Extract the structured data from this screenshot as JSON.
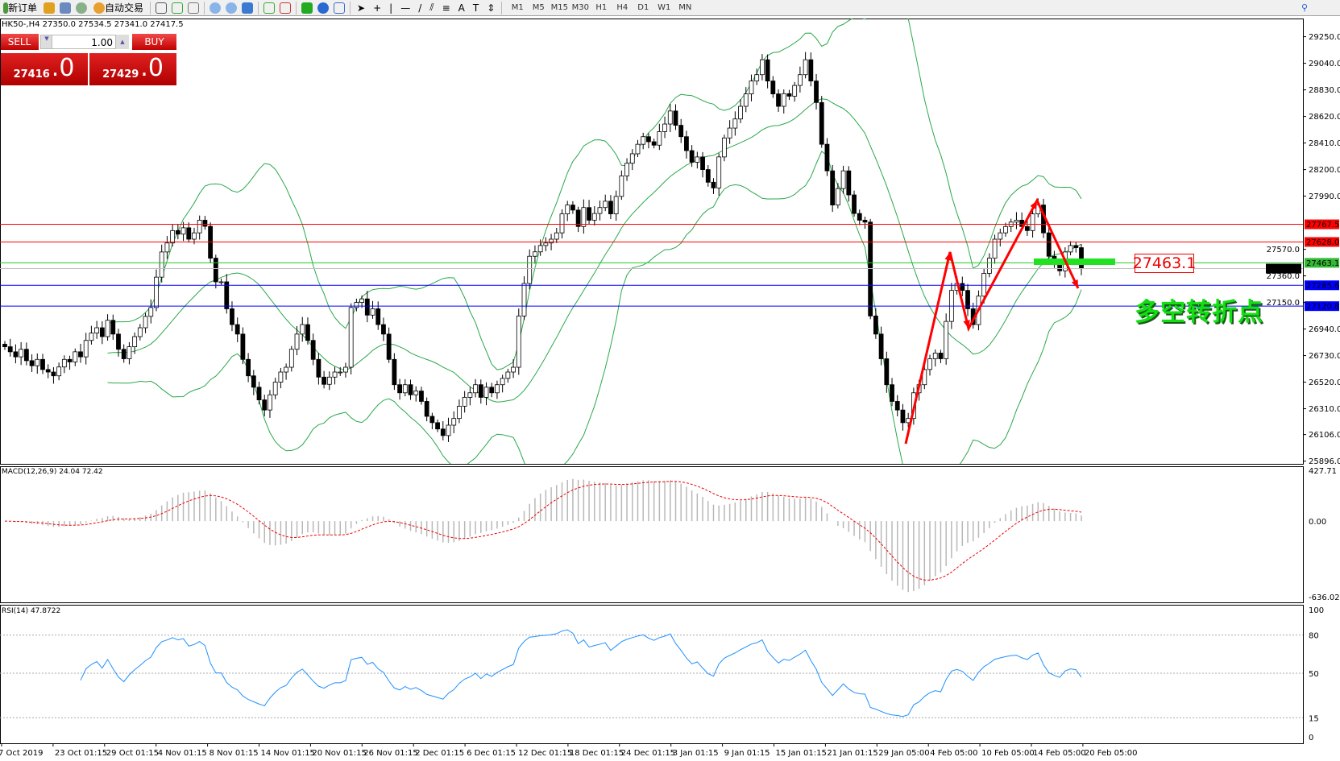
{
  "toolbar": {
    "new_order": "新订单",
    "auto_trading": "自动交易",
    "timeframes": [
      "M1",
      "M5",
      "M15",
      "M30",
      "H1",
      "H4",
      "D1",
      "W1",
      "MN"
    ]
  },
  "chart": {
    "title": "HK50-,H4  27350.0 27534.5 27341.0 27417.5"
  },
  "trade": {
    "sell_label": "SELL",
    "buy_label": "BUY",
    "lot": "1.00",
    "sell_price": "27416",
    "sell_frac": ".0",
    "buy_price": "27429",
    "buy_frac": ".0"
  },
  "annotation": {
    "price_box": "27463.1",
    "text": "多空转折点",
    "arrow_color": "#ff0000",
    "marker_color": "#22e022"
  },
  "chart_data": [
    {
      "type": "candlestick",
      "symbol": "HK50-",
      "timeframe": "H4",
      "ylim": [
        25896,
        29460
      ],
      "y_ticks": [
        "29250.0",
        "29040.0",
        "28830.0",
        "28620.0",
        "28410.0",
        "28200.0",
        "27990.0",
        "27570.0",
        "27360.0",
        "27150.0",
        "26940.0",
        "26730.0",
        "26520.0",
        "26310.0",
        "26106.0",
        "25896.0"
      ],
      "x_ticks": [
        "7 Oct 2019",
        "23 Oct 01:15",
        "29 Oct 01:15",
        "4 Nov 01:15",
        "8 Nov 01:15",
        "14 Nov 01:15",
        "20 Nov 01:15",
        "26 Nov 01:15",
        "2 Dec 01:15",
        "6 Dec 01:15",
        "12 Dec 01:15",
        "18 Dec 01:15",
        "24 Dec 01:15",
        "3 Jan 01:15",
        "9 Jan 01:15",
        "15 Jan 01:15",
        "21 Jan 01:15",
        "29 Jan 05:00",
        "4 Feb 05:00",
        "10 Feb 05:00",
        "14 Feb 05:00",
        "20 Feb 05:00"
      ],
      "closes": [
        26800,
        26760,
        26720,
        26780,
        26690,
        26650,
        26700,
        26620,
        26600,
        26570,
        26640,
        26700,
        26680,
        26760,
        26720,
        26850,
        26908,
        26950,
        26880,
        27009,
        26900,
        26780,
        26705,
        26800,
        26880,
        26950,
        27040,
        27110,
        27350,
        27549,
        27620,
        27718,
        27690,
        27740,
        27650,
        27700,
        27800,
        27752,
        27500,
        27313,
        27313,
        27100,
        26975,
        26900,
        26700,
        26570,
        26480,
        26380,
        26300,
        26420,
        26520,
        26600,
        26638,
        26780,
        26900,
        26975,
        26850,
        26700,
        26560,
        26503,
        26560,
        26600,
        26600,
        26638,
        27110,
        27150,
        27178,
        27050,
        27100,
        26975,
        26900,
        26700,
        26500,
        26436,
        26500,
        26420,
        26450,
        26368,
        26250,
        26200,
        26150,
        26098,
        26180,
        26233,
        26330,
        26400,
        26436,
        26500,
        26400,
        26480,
        26436,
        26500,
        26550,
        26600,
        26638,
        27043,
        27300,
        27515,
        27550,
        27600,
        27620,
        27650,
        27700,
        27850,
        27920,
        27880,
        27750,
        27900,
        27800,
        27853,
        27900,
        27950,
        27850,
        27988,
        28150,
        28250,
        28325,
        28400,
        28460,
        28420,
        28393,
        28500,
        28560,
        28663,
        28550,
        28460,
        28350,
        28258,
        28300,
        28200,
        28100,
        28055,
        28300,
        28450,
        28528,
        28600,
        28700,
        28798,
        28900,
        28950,
        29068,
        28900,
        28798,
        28700,
        28800,
        28780,
        28865,
        28950,
        29068,
        28900,
        28730,
        28400,
        28190,
        27920,
        28050,
        28190,
        28000,
        27853,
        27800,
        27785,
        27043,
        26900,
        26705,
        26500,
        26368,
        26300,
        26200,
        26233,
        26436,
        26500,
        26620,
        26705,
        26750,
        26705,
        27000,
        27245,
        27300,
        27245,
        27100,
        26975,
        27200,
        27380,
        27500,
        27650,
        27700,
        27750,
        27785,
        27800,
        27750,
        27718,
        27850,
        27920,
        27700,
        27515,
        27450,
        27400,
        27549,
        27600,
        27583,
        27417
      ],
      "last_ohlc": {
        "open": 27350.0,
        "high": 27534.5,
        "low": 27341.0,
        "close": 27417.5
      },
      "levels": [
        {
          "price": "27767.5",
          "color": "#ff0000"
        },
        {
          "price": "27628.0",
          "color": "#ff0000"
        },
        {
          "price": "27463.1",
          "color": "#22cc22"
        },
        {
          "price": "27417.5",
          "color": "#000000"
        },
        {
          "price": "27285.6",
          "color": "#0000ff"
        },
        {
          "price": "27120.8",
          "color": "#0000ff"
        }
      ],
      "overlays": "Bollinger Bands (green)"
    },
    {
      "type": "histogram+line",
      "label": "MACD(12,26,9) 24.04 72.42",
      "ylim": [
        -636.02,
        427.71
      ],
      "y_ticks": [
        "427.71",
        "0.00",
        "-636.02"
      ]
    },
    {
      "type": "line",
      "label": "RSI(14) 47.8722",
      "ylim": [
        0,
        100
      ],
      "y_ticks": [
        "100",
        "80",
        "50",
        "15",
        "0"
      ],
      "color": "#1e90ff"
    }
  ]
}
